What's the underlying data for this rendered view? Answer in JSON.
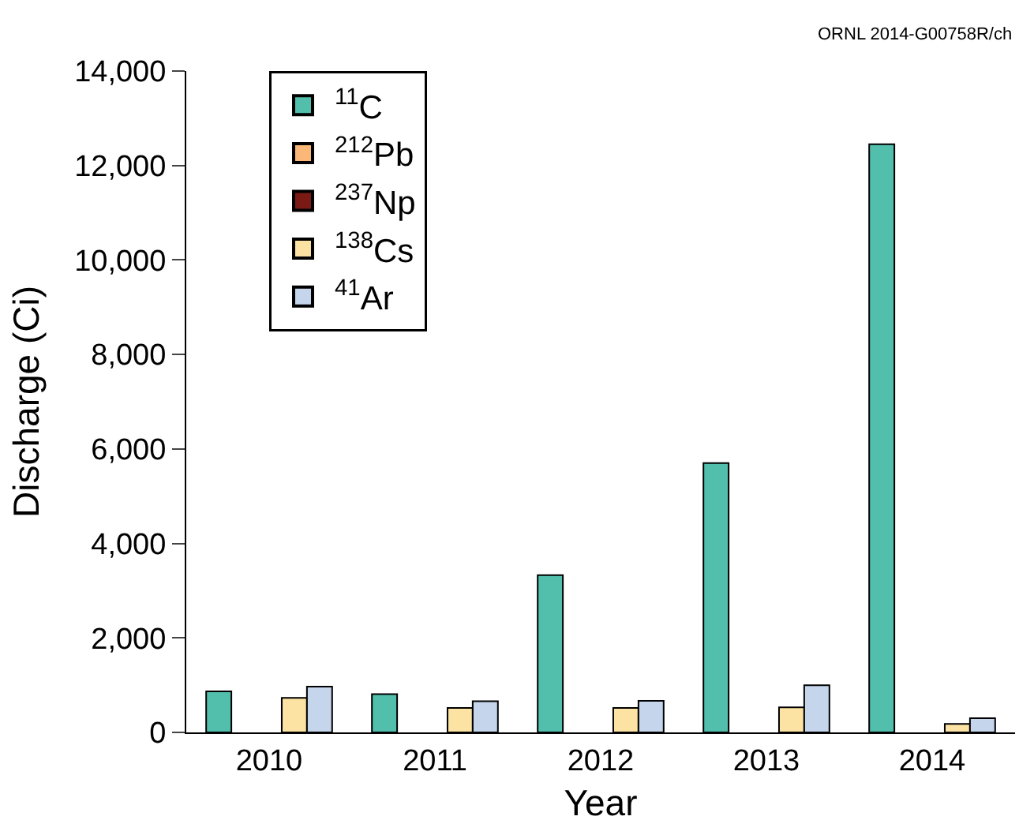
{
  "chart_data": {
    "type": "bar",
    "xlabel": "Year",
    "ylabel": "Discharge (Ci)",
    "categories": [
      "2010",
      "2011",
      "2012",
      "2013",
      "2014"
    ],
    "series": [
      {
        "name": "$^{11}$C",
        "color": "#52bfad",
        "values": [
          870,
          810,
          3330,
          5700,
          12450
        ]
      },
      {
        "name": "$^{212}$Pb",
        "color": "#f9b878",
        "values": [
          null,
          null,
          null,
          null,
          null
        ]
      },
      {
        "name": "$^{237}$Np",
        "color": "#7b1a14",
        "values": [
          null,
          null,
          null,
          null,
          null
        ]
      },
      {
        "name": "$^{138}$Cs",
        "color": "#fce3a4",
        "values": [
          730,
          520,
          520,
          530,
          180
        ]
      },
      {
        "name": "$^{41}$Ar",
        "color": "#c5d5ec",
        "values": [
          970,
          660,
          670,
          1000,
          300
        ]
      }
    ],
    "ylim": [
      0,
      14000
    ],
    "yticks": [
      {
        "value": 0,
        "label": "0"
      },
      {
        "value": 2000,
        "label": "2,000"
      },
      {
        "value": 4000,
        "label": "4,000"
      },
      {
        "value": 6000,
        "label": "6,000"
      },
      {
        "value": 8000,
        "label": "8,000"
      },
      {
        "value": 10000,
        "label": "10,000"
      },
      {
        "value": 12000,
        "label": "12,000"
      },
      {
        "value": 14000,
        "label": "14,000"
      }
    ],
    "legend": "top left",
    "annotations": [
      "ORNL 2014-G00758R/ch"
    ]
  }
}
